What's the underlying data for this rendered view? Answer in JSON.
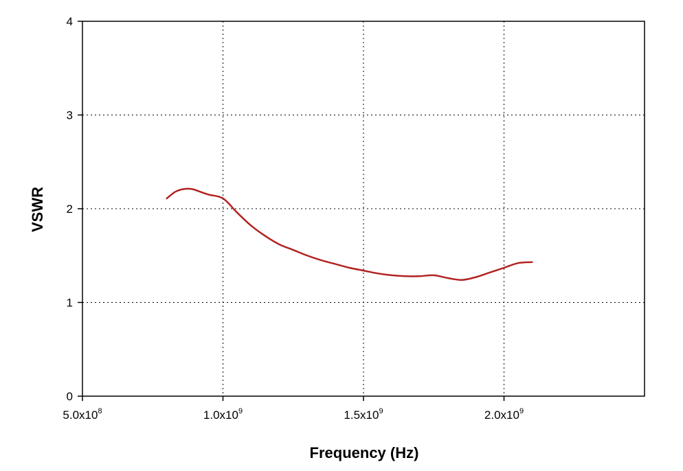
{
  "chart_data": {
    "type": "line",
    "xlabel": "Frequency (Hz)",
    "ylabel": "VSWR",
    "xlim": [
      500000000,
      2500000000
    ],
    "ylim": [
      0,
      4
    ],
    "grid": true,
    "x_ticks": [
      {
        "value": 500000000,
        "mantissa": "5.0x10",
        "exp": "8"
      },
      {
        "value": 1000000000,
        "mantissa": "1.0x10",
        "exp": "9"
      },
      {
        "value": 1500000000,
        "mantissa": "1.5x10",
        "exp": "9"
      },
      {
        "value": 2000000000,
        "mantissa": "2.0x10",
        "exp": "9"
      }
    ],
    "y_ticks": [
      0,
      1,
      2,
      3,
      4
    ],
    "series": [
      {
        "color": "#b22222",
        "points": [
          [
            800000000,
            2.11
          ],
          [
            830000000,
            2.18
          ],
          [
            860000000,
            2.21
          ],
          [
            890000000,
            2.21
          ],
          [
            920000000,
            2.18
          ],
          [
            950000000,
            2.15
          ],
          [
            1000000000,
            2.11
          ],
          [
            1050000000,
            1.96
          ],
          [
            1100000000,
            1.82
          ],
          [
            1150000000,
            1.71
          ],
          [
            1200000000,
            1.62
          ],
          [
            1250000000,
            1.56
          ],
          [
            1300000000,
            1.5
          ],
          [
            1350000000,
            1.45
          ],
          [
            1400000000,
            1.41
          ],
          [
            1450000000,
            1.37
          ],
          [
            1500000000,
            1.34
          ],
          [
            1550000000,
            1.31
          ],
          [
            1600000000,
            1.29
          ],
          [
            1650000000,
            1.28
          ],
          [
            1700000000,
            1.28
          ],
          [
            1750000000,
            1.29
          ],
          [
            1800000000,
            1.26
          ],
          [
            1850000000,
            1.24
          ],
          [
            1900000000,
            1.27
          ],
          [
            1950000000,
            1.32
          ],
          [
            2000000000,
            1.37
          ],
          [
            2050000000,
            1.42
          ],
          [
            2100000000,
            1.43
          ]
        ]
      }
    ]
  }
}
